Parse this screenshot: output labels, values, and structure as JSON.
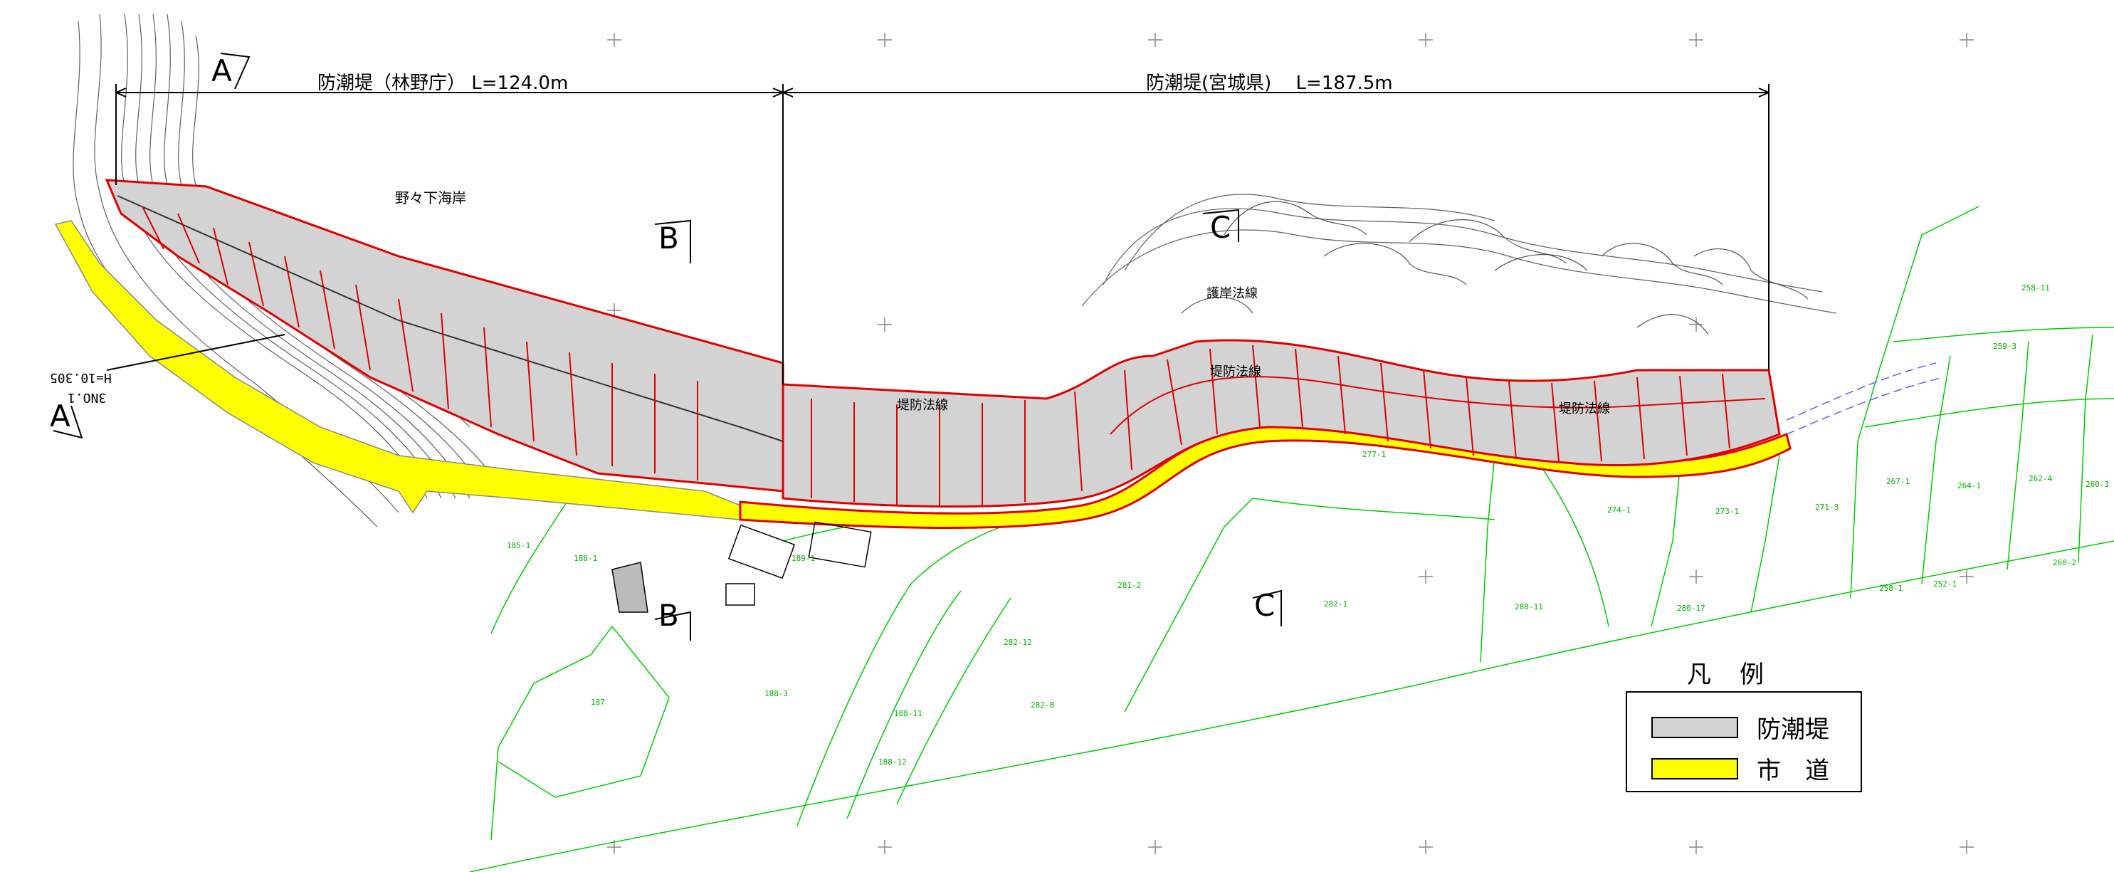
{
  "dimensions": {
    "left": {
      "label": "防潮堤（林野庁） L=124.0m"
    },
    "right": {
      "label": "防潮堤(宮城県)　 L=187.5m"
    }
  },
  "places": {
    "coast": "野々下海岸",
    "road_code": "H=10.305",
    "road_number": "3NO.1"
  },
  "sections": {
    "a": "A",
    "b": "B",
    "c": "C"
  },
  "facilities": {
    "f1": "護岸法線",
    "f2": "堤防法線",
    "f3": "堤防法線",
    "f4": "堤防法線"
  },
  "parcels": [
    "185-1",
    "186-1",
    "187",
    "188-3",
    "188-11",
    "188-12",
    "189-1",
    "282-12",
    "282-8",
    "281-2",
    "282-1",
    "280-11",
    "280-17",
    "277-1",
    "274-1",
    "273-1",
    "271-3",
    "267-1",
    "264-1",
    "262-4",
    "260-3",
    "260-2",
    "258-1",
    "252-1",
    "258-11",
    "259-3"
  ],
  "legend": {
    "title": "凡例",
    "items": [
      {
        "label": "防潮堤",
        "color": "#d3d3d3"
      },
      {
        "label": "市　道",
        "color": "#ffff00"
      }
    ]
  },
  "colors": {
    "seawall_outline": "#e00000",
    "seawall_fill": "#d3d3d3",
    "road_fill": "#ffff00",
    "parcel_line": "#00cc00",
    "contour_line": "#606060",
    "water_line": "#6060ff"
  }
}
